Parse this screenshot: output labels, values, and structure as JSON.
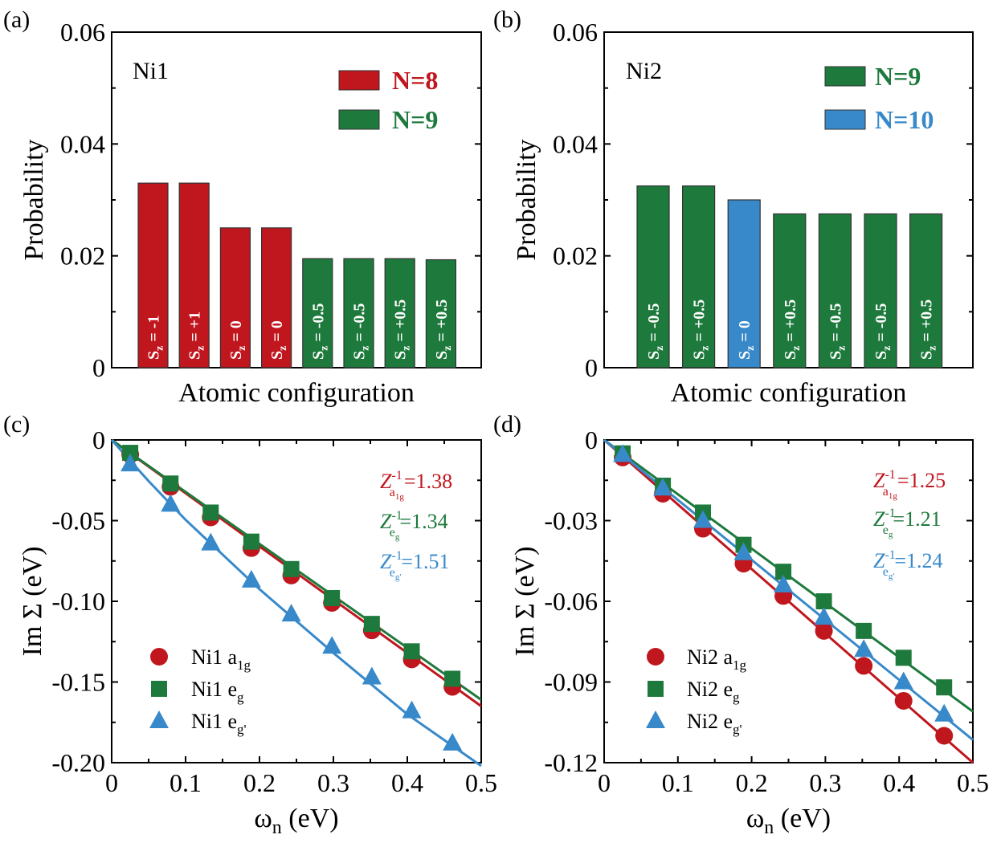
{
  "colors": {
    "red": "#c0161e",
    "green": "#1e7a3c",
    "blue": "#3889ca"
  },
  "chart_data": [
    {
      "panel": "(a)",
      "type": "bar",
      "title": "Ni1",
      "xlabel": "Atomic configuration",
      "ylabel": "Probability",
      "ylim": [
        0,
        0.06
      ],
      "yticks": [
        "0",
        "0.02",
        "0.04",
        "0.06"
      ],
      "legend": [
        {
          "label": "N=8",
          "color": "#c0161e"
        },
        {
          "label": "N=9",
          "color": "#1e7a3c"
        }
      ],
      "bars": [
        {
          "value": 0.033,
          "label": "S",
          "sub": "z",
          "val": " = -1",
          "color": "#c0161e"
        },
        {
          "value": 0.033,
          "label": "S",
          "sub": "z",
          "val": " = +1",
          "color": "#c0161e"
        },
        {
          "value": 0.025,
          "label": "S",
          "sub": "z",
          "val": " = 0",
          "color": "#c0161e"
        },
        {
          "value": 0.025,
          "label": "S",
          "sub": "z",
          "val": " = 0",
          "color": "#c0161e"
        },
        {
          "value": 0.0195,
          "label": "S",
          "sub": "z",
          "val": " = -0.5",
          "color": "#1e7a3c"
        },
        {
          "value": 0.0195,
          "label": "S",
          "sub": "z",
          "val": " = -0.5",
          "color": "#1e7a3c"
        },
        {
          "value": 0.0195,
          "label": "S",
          "sub": "z",
          "val": " = +0.5",
          "color": "#1e7a3c"
        },
        {
          "value": 0.0193,
          "label": "S",
          "sub": "z",
          "val": " = +0.5",
          "color": "#1e7a3c"
        }
      ]
    },
    {
      "panel": "(b)",
      "type": "bar",
      "title": "Ni2",
      "xlabel": "Atomic configuration",
      "ylabel": "Probability",
      "ylim": [
        0,
        0.06
      ],
      "yticks": [
        "0",
        "0.02",
        "0.04",
        "0.06"
      ],
      "legend": [
        {
          "label": "N=9",
          "color": "#1e7a3c"
        },
        {
          "label": "N=10",
          "color": "#3889ca"
        }
      ],
      "bars": [
        {
          "value": 0.0325,
          "label": "S",
          "sub": "z",
          "val": " = -0.5",
          "color": "#1e7a3c"
        },
        {
          "value": 0.0325,
          "label": "S",
          "sub": "z",
          "val": " = +0.5",
          "color": "#1e7a3c"
        },
        {
          "value": 0.03,
          "label": "S",
          "sub": "z",
          "val": " = 0",
          "color": "#3889ca"
        },
        {
          "value": 0.0275,
          "label": "S",
          "sub": "z",
          "val": " = +0.5",
          "color": "#1e7a3c"
        },
        {
          "value": 0.0275,
          "label": "S",
          "sub": "z",
          "val": " = -0.5",
          "color": "#1e7a3c"
        },
        {
          "value": 0.0275,
          "label": "S",
          "sub": "z",
          "val": " = -0.5",
          "color": "#1e7a3c"
        },
        {
          "value": 0.0275,
          "label": "S",
          "sub": "z",
          "val": " = +0.5",
          "color": "#1e7a3c"
        }
      ]
    },
    {
      "panel": "(c)",
      "type": "scatter",
      "xlabel": "ω",
      "xlabel_sub": "n",
      "xlabel_unit": " (eV)",
      "ylabel": "Im Σ (eV)",
      "xlim": [
        0,
        0.5
      ],
      "ylim": [
        -0.2,
        0
      ],
      "xticks": [
        "0",
        "0.1",
        "0.2",
        "0.3",
        "0.4",
        "0.5"
      ],
      "yticks": [
        "0",
        "-0.05",
        "-0.10",
        "-0.15",
        "-0.20"
      ],
      "x": [
        0.0251,
        0.0796,
        0.134,
        0.189,
        0.243,
        0.298,
        0.352,
        0.406,
        0.461
      ],
      "annotations": [
        {
          "sup": "-1",
          "sub": "a1g",
          "value": "=1.38",
          "color": "#c0161e"
        },
        {
          "sup": "-1",
          "sub": "eg",
          "value": "=1.34",
          "color": "#1e7a3c"
        },
        {
          "sup": "-1",
          "sub": "eg'",
          "value": "=1.51",
          "color": "#3889ca"
        }
      ],
      "series": [
        {
          "name": "Ni1 a",
          "name_sub": "1g",
          "marker": "circle",
          "color": "#c0161e",
          "values": [
            -0.009,
            -0.029,
            -0.048,
            -0.067,
            -0.084,
            -0.101,
            -0.118,
            -0.136,
            -0.153
          ],
          "fit": [
            [
              0,
              0
            ],
            [
              0.5,
              -0.165
            ]
          ]
        },
        {
          "name": "Ni1 e",
          "name_sub": "g",
          "marker": "square",
          "color": "#1e7a3c",
          "values": [
            -0.008,
            -0.027,
            -0.045,
            -0.063,
            -0.08,
            -0.098,
            -0.114,
            -0.131,
            -0.148
          ],
          "fit": [
            [
              0,
              0
            ],
            [
              0.5,
              -0.161
            ]
          ]
        },
        {
          "name": "Ni1 e",
          "name_sub": "g'",
          "marker": "triangle",
          "color": "#3889ca",
          "values": [
            -0.015,
            -0.04,
            -0.064,
            -0.087,
            -0.108,
            -0.128,
            -0.147,
            -0.168,
            -0.188
          ],
          "fit": [
            [
              0,
              0
            ],
            [
              0.05,
              -0.0255
            ],
            [
              0.1,
              -0.0495
            ],
            [
              0.2,
              -0.0925
            ],
            [
              0.3,
              -0.132
            ],
            [
              0.4,
              -0.17
            ],
            [
              0.5,
              -0.202
            ]
          ]
        }
      ]
    },
    {
      "panel": "(d)",
      "type": "scatter",
      "xlabel": "ω",
      "xlabel_sub": "n",
      "xlabel_unit": " (eV)",
      "ylabel": "Im Σ (eV)",
      "xlim": [
        0,
        0.5
      ],
      "ylim": [
        -0.12,
        0
      ],
      "xticks": [
        "0",
        "0.1",
        "0.2",
        "0.3",
        "0.4",
        "0.5"
      ],
      "yticks": [
        "0",
        "-0.03",
        "-0.06",
        "-0.09",
        "-0.12"
      ],
      "x": [
        0.0251,
        0.0796,
        0.134,
        0.189,
        0.243,
        0.298,
        0.352,
        0.406,
        0.461
      ],
      "annotations": [
        {
          "sup": "-1",
          "sub": "a1g",
          "value": "=1.25",
          "color": "#c0161e"
        },
        {
          "sup": "-1",
          "sub": "eg",
          "value": "=1.21",
          "color": "#1e7a3c"
        },
        {
          "sup": "-1",
          "sub": "eg'",
          "value": "=1.24",
          "color": "#3889ca"
        }
      ],
      "series": [
        {
          "name": "Ni2 a",
          "name_sub": "1g",
          "marker": "circle",
          "color": "#c0161e",
          "values": [
            -0.0065,
            -0.02,
            -0.033,
            -0.046,
            -0.058,
            -0.071,
            -0.084,
            -0.097,
            -0.11
          ],
          "fit": [
            [
              0,
              0
            ],
            [
              0.5,
              -0.12
            ]
          ]
        },
        {
          "name": "Ni2 e",
          "name_sub": "g",
          "marker": "square",
          "color": "#1e7a3c",
          "values": [
            -0.005,
            -0.017,
            -0.027,
            -0.039,
            -0.049,
            -0.06,
            -0.071,
            -0.081,
            -0.092
          ],
          "fit": [
            [
              0,
              0
            ],
            [
              0.5,
              -0.101
            ]
          ]
        },
        {
          "name": "Ni2 e",
          "name_sub": "g'",
          "marker": "triangle",
          "color": "#3889ca",
          "values": [
            -0.0055,
            -0.018,
            -0.03,
            -0.042,
            -0.054,
            -0.066,
            -0.078,
            -0.09,
            -0.102
          ],
          "fit": [
            [
              0,
              0
            ],
            [
              0.5,
              -0.1115
            ]
          ]
        }
      ]
    }
  ]
}
